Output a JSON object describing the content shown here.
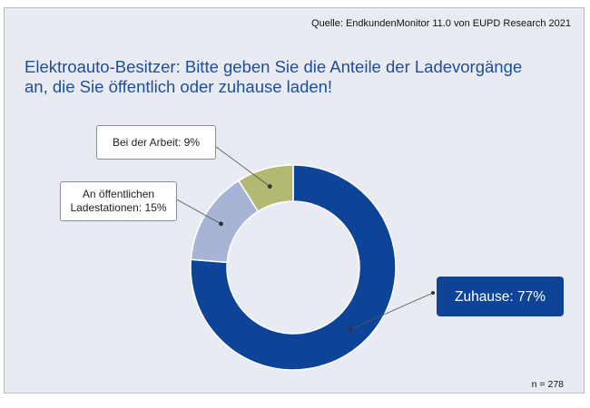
{
  "source": "Quelle: EndkundenMonitor 11.0 von EUPD Research 2021",
  "title": "Elektroauto-Besitzer: Bitte geben Sie die Anteile der Ladevorgänge an, die Sie öffentlich oder zuhause laden!",
  "sample": "n = 278",
  "chart_data": {
    "type": "pie",
    "variant": "donut",
    "slices": [
      {
        "label": "Zuhause: 77%",
        "value": 77,
        "color": "#0d4498"
      },
      {
        "label": "An öffentlichen\nLadestationen: 15%",
        "value": 15,
        "color": "#a7b4d6"
      },
      {
        "label": "Bei der Arbeit: 9%",
        "value": 9,
        "color": "#b3b872"
      }
    ]
  }
}
